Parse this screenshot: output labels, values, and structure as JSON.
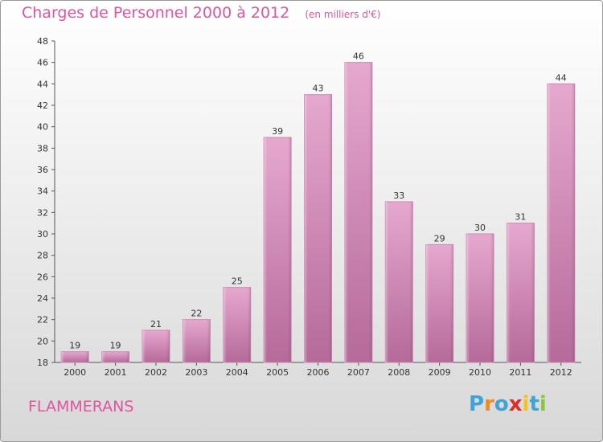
{
  "title": "Charges de Personnel 2000 à 2012",
  "subtitle": "(en milliers d'€)",
  "commune": "FLAMMERANS",
  "logo": {
    "letters": [
      "P",
      "r",
      "o",
      "x",
      "i",
      "t",
      "i"
    ],
    "colors": [
      "#3da3d9",
      "#f08a1c",
      "#3da3d9",
      "#e02a2a",
      "#f0c41c",
      "#3da3d9",
      "#8cc63f"
    ]
  },
  "colors": {
    "bar": "#d88fbc",
    "bar_dark": "#b86c9c",
    "title": "#e0559e"
  },
  "chart_data": {
    "type": "bar",
    "categories": [
      "2000",
      "2001",
      "2002",
      "2003",
      "2004",
      "2005",
      "2006",
      "2007",
      "2008",
      "2009",
      "2010",
      "2011",
      "2012"
    ],
    "values": [
      19,
      19,
      21,
      22,
      25,
      39,
      43,
      46,
      33,
      29,
      30,
      31,
      44
    ],
    "ylim": [
      18,
      48
    ],
    "yticks": [
      18,
      20,
      22,
      24,
      26,
      28,
      30,
      32,
      34,
      36,
      38,
      40,
      42,
      44,
      46,
      48
    ],
    "grid": false
  }
}
